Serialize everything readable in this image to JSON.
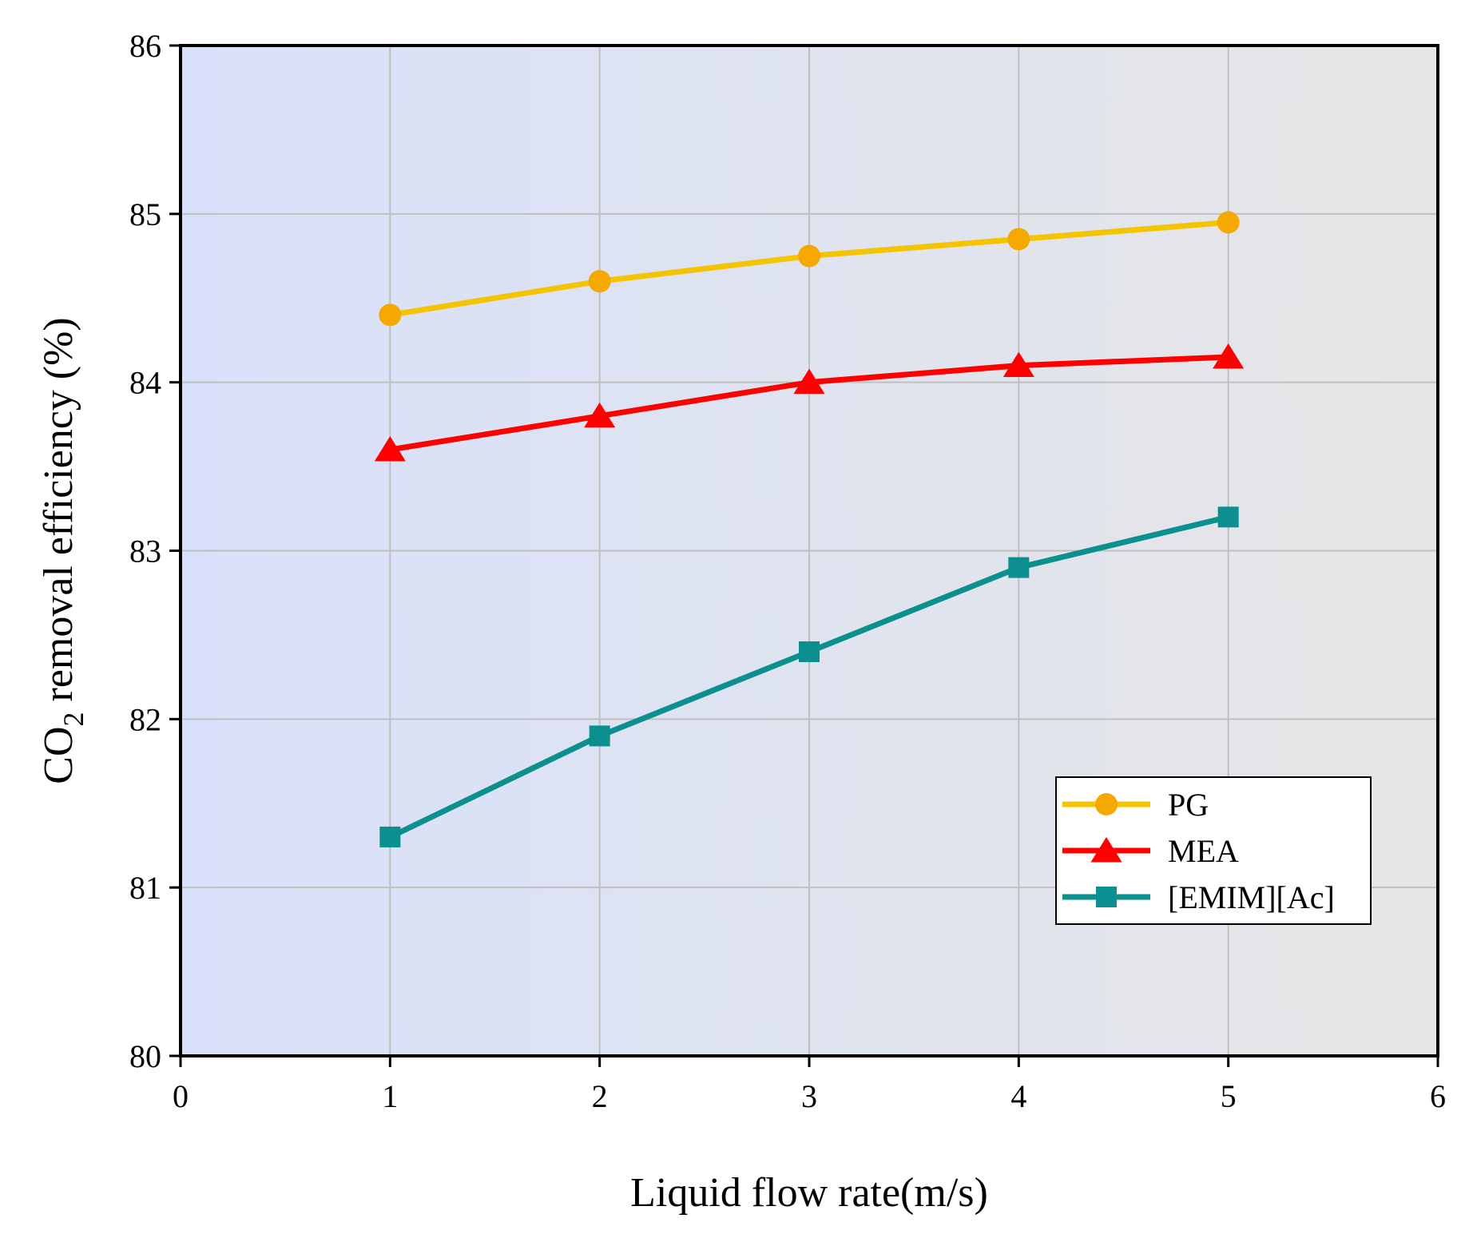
{
  "chart_data": {
    "type": "line",
    "title": "",
    "xlabel": "Liquid flow rate(m/s)",
    "ylabel": {
      "prefix": "CO",
      "subscript": "2",
      "suffix": " removal efficiency (%)"
    },
    "xlim": [
      0,
      6
    ],
    "ylim": [
      80,
      86
    ],
    "xticks": [
      0,
      1,
      2,
      3,
      4,
      5,
      6
    ],
    "yticks": [
      80,
      81,
      82,
      83,
      84,
      85,
      86
    ],
    "grid": true,
    "background_gradient": [
      "#d9e1fa",
      "#e6e6e6"
    ],
    "legend_position": "lower-right",
    "x": [
      1,
      2,
      3,
      4,
      5
    ],
    "series": [
      {
        "name": "PG",
        "values": [
          84.4,
          84.6,
          84.75,
          84.85,
          84.95
        ],
        "color": "#f5c400",
        "marker_color": "#f5a800",
        "marker": "circle"
      },
      {
        "name": "MEA",
        "values": [
          83.6,
          83.8,
          84.0,
          84.1,
          84.15
        ],
        "color": "#ff0000",
        "marker_color": "#ff0000",
        "marker": "triangle"
      },
      {
        "name": "[EMIM][Ac]",
        "values": [
          81.3,
          81.9,
          82.4,
          82.9,
          83.2
        ],
        "color": "#0b8f8f",
        "marker_color": "#0b8f8f",
        "marker": "square"
      }
    ]
  }
}
